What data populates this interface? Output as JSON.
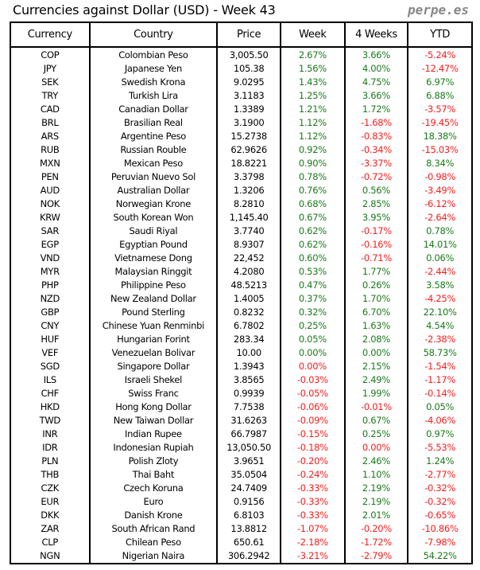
{
  "title": "Currencies against Dollar (USD) - Week 43",
  "brand": "perpe.es",
  "colors": {
    "positive": "#1b7a1b",
    "negative": "#ff1a1a"
  },
  "columns": [
    "Currency",
    "Country",
    "Price",
    "Week",
    "4 Weeks",
    "YTD"
  ],
  "rows": [
    {
      "code": "COP",
      "country": "Colombian Peso",
      "price": "3,005.50",
      "week": "2.67%",
      "w4": "3.66%",
      "ytd": "-5.24%"
    },
    {
      "code": "JPY",
      "country": "Japanese Yen",
      "price": "105.38",
      "week": "1.56%",
      "w4": "4.00%",
      "ytd": "-12.47%"
    },
    {
      "code": "SEK",
      "country": "Swedish Krona",
      "price": "9.0295",
      "week": "1.43%",
      "w4": "4.75%",
      "ytd": "6.97%"
    },
    {
      "code": "TRY",
      "country": "Turkish Lira",
      "price": "3.1183",
      "week": "1.25%",
      "w4": "3.66%",
      "ytd": "6.88%"
    },
    {
      "code": "CAD",
      "country": "Canadian Dollar",
      "price": "1.3389",
      "week": "1.21%",
      "w4": "1.72%",
      "ytd": "-3.57%"
    },
    {
      "code": "BRL",
      "country": "Brasilian Real",
      "price": "3.1900",
      "week": "1.12%",
      "w4": "-1.68%",
      "ytd": "-19.45%"
    },
    {
      "code": "ARS",
      "country": "Argentine Peso",
      "price": "15.2738",
      "week": "1.12%",
      "w4": "-0.83%",
      "ytd": "18.38%"
    },
    {
      "code": "RUB",
      "country": "Russian Rouble",
      "price": "62.9626",
      "week": "0.92%",
      "w4": "-0.34%",
      "ytd": "-15.03%"
    },
    {
      "code": "MXN",
      "country": "Mexican Peso",
      "price": "18.8221",
      "week": "0.90%",
      "w4": "-3.37%",
      "ytd": "8.34%"
    },
    {
      "code": "PEN",
      "country": "Peruvian Nuevo Sol",
      "price": "3.3798",
      "week": "0.78%",
      "w4": "-0.72%",
      "ytd": "-0.98%"
    },
    {
      "code": "AUD",
      "country": "Australian Dollar",
      "price": "1.3206",
      "week": "0.76%",
      "w4": "0.56%",
      "ytd": "-3.49%"
    },
    {
      "code": "NOK",
      "country": "Norwegian Krone",
      "price": "8.2810",
      "week": "0.68%",
      "w4": "2.85%",
      "ytd": "-6.12%"
    },
    {
      "code": "KRW",
      "country": "South Korean Won",
      "price": "1,145.40",
      "week": "0.67%",
      "w4": "3.95%",
      "ytd": "-2.64%"
    },
    {
      "code": "SAR",
      "country": "Saudi Riyal",
      "price": "3.7740",
      "week": "0.62%",
      "w4": "-0.17%",
      "ytd": "0.78%"
    },
    {
      "code": "EGP",
      "country": "Egyptian Pound",
      "price": "8.9307",
      "week": "0.62%",
      "w4": "-0.16%",
      "ytd": "14.01%"
    },
    {
      "code": "VND",
      "country": "Vietnamese Dong",
      "price": "22,452",
      "week": "0.60%",
      "w4": "-0.71%",
      "ytd": "0.06%"
    },
    {
      "code": "MYR",
      "country": "Malaysian Ringgit",
      "price": "4.2080",
      "week": "0.53%",
      "w4": "1.77%",
      "ytd": "-2.44%"
    },
    {
      "code": "PHP",
      "country": "Philippine Peso",
      "price": "48.5213",
      "week": "0.47%",
      "w4": "0.26%",
      "ytd": "3.58%"
    },
    {
      "code": "NZD",
      "country": "New Zealand Dollar",
      "price": "1.4005",
      "week": "0.37%",
      "w4": "1.70%",
      "ytd": "-4.25%"
    },
    {
      "code": "GBP",
      "country": "Pound Sterling",
      "price": "0.8232",
      "week": "0.32%",
      "w4": "6.70%",
      "ytd": "22.10%"
    },
    {
      "code": "CNY",
      "country": "Chinese Yuan Renminbi",
      "price": "6.7802",
      "week": "0.25%",
      "w4": "1.63%",
      "ytd": "4.54%"
    },
    {
      "code": "HUF",
      "country": "Hungarian Forint",
      "price": "283.34",
      "week": "0.05%",
      "w4": "2.08%",
      "ytd": "-2.38%"
    },
    {
      "code": "VEF",
      "country": "Venezuelan Bolivar",
      "price": "10.00",
      "week": "0.00%",
      "w4": "0.00%",
      "ytd": "58.73%"
    },
    {
      "code": "SGD",
      "country": "Singapore Dollar",
      "price": "1.3943",
      "week": "0.00%",
      "w4": "2.15%",
      "ytd": "-1.54%",
      "red": [
        "week"
      ]
    },
    {
      "code": "ILS",
      "country": "Israeli Shekel",
      "price": "3.8565",
      "week": "-0.03%",
      "w4": "2.49%",
      "ytd": "-1.17%"
    },
    {
      "code": "CHF",
      "country": "Swiss Franc",
      "price": "0.9939",
      "week": "-0.05%",
      "w4": "1.99%",
      "ytd": "-0.14%"
    },
    {
      "code": "HKD",
      "country": "Hong Kong Dollar",
      "price": "7.7538",
      "week": "-0.06%",
      "w4": "-0.01%",
      "ytd": "0.05%"
    },
    {
      "code": "TWD",
      "country": "New Taiwan Dollar",
      "price": "31.6263",
      "week": "-0.09%",
      "w4": "0.67%",
      "ytd": "-4.06%"
    },
    {
      "code": "INR",
      "country": "Indian Rupee",
      "price": "66.7987",
      "week": "-0.15%",
      "w4": "0.25%",
      "ytd": "0.97%"
    },
    {
      "code": "IDR",
      "country": "Indonesian Rupiah",
      "price": "13,050.50",
      "week": "-0.18%",
      "w4": "0.00%",
      "ytd": "-5.53%",
      "red": [
        "w4"
      ]
    },
    {
      "code": "PLN",
      "country": "Polish Zloty",
      "price": "3.9651",
      "week": "-0.20%",
      "w4": "2.46%",
      "ytd": "1.24%"
    },
    {
      "code": "THB",
      "country": "Thai Baht",
      "price": "35.0504",
      "week": "-0.24%",
      "w4": "1.10%",
      "ytd": "-2.77%"
    },
    {
      "code": "CZK",
      "country": "Czech Koruna",
      "price": "24.7409",
      "week": "-0.33%",
      "w4": "2.19%",
      "ytd": "-0.32%"
    },
    {
      "code": "EUR",
      "country": "Euro",
      "price": "0.9156",
      "week": "-0.33%",
      "w4": "2.19%",
      "ytd": "-0.32%"
    },
    {
      "code": "DKK",
      "country": "Danish Krone",
      "price": "6.8103",
      "week": "-0.33%",
      "w4": "2.01%",
      "ytd": "-0.65%"
    },
    {
      "code": "ZAR",
      "country": "South African Rand",
      "price": "13.8812",
      "week": "-1.07%",
      "w4": "-0.20%",
      "ytd": "-10.86%"
    },
    {
      "code": "CLP",
      "country": "Chilean Peso",
      "price": "650.61",
      "week": "-2.18%",
      "w4": "-1.72%",
      "ytd": "-7.98%"
    },
    {
      "code": "NGN",
      "country": "Nigerian Naira",
      "price": "306.2942",
      "week": "-3.21%",
      "w4": "-2.79%",
      "ytd": "54.22%"
    }
  ]
}
